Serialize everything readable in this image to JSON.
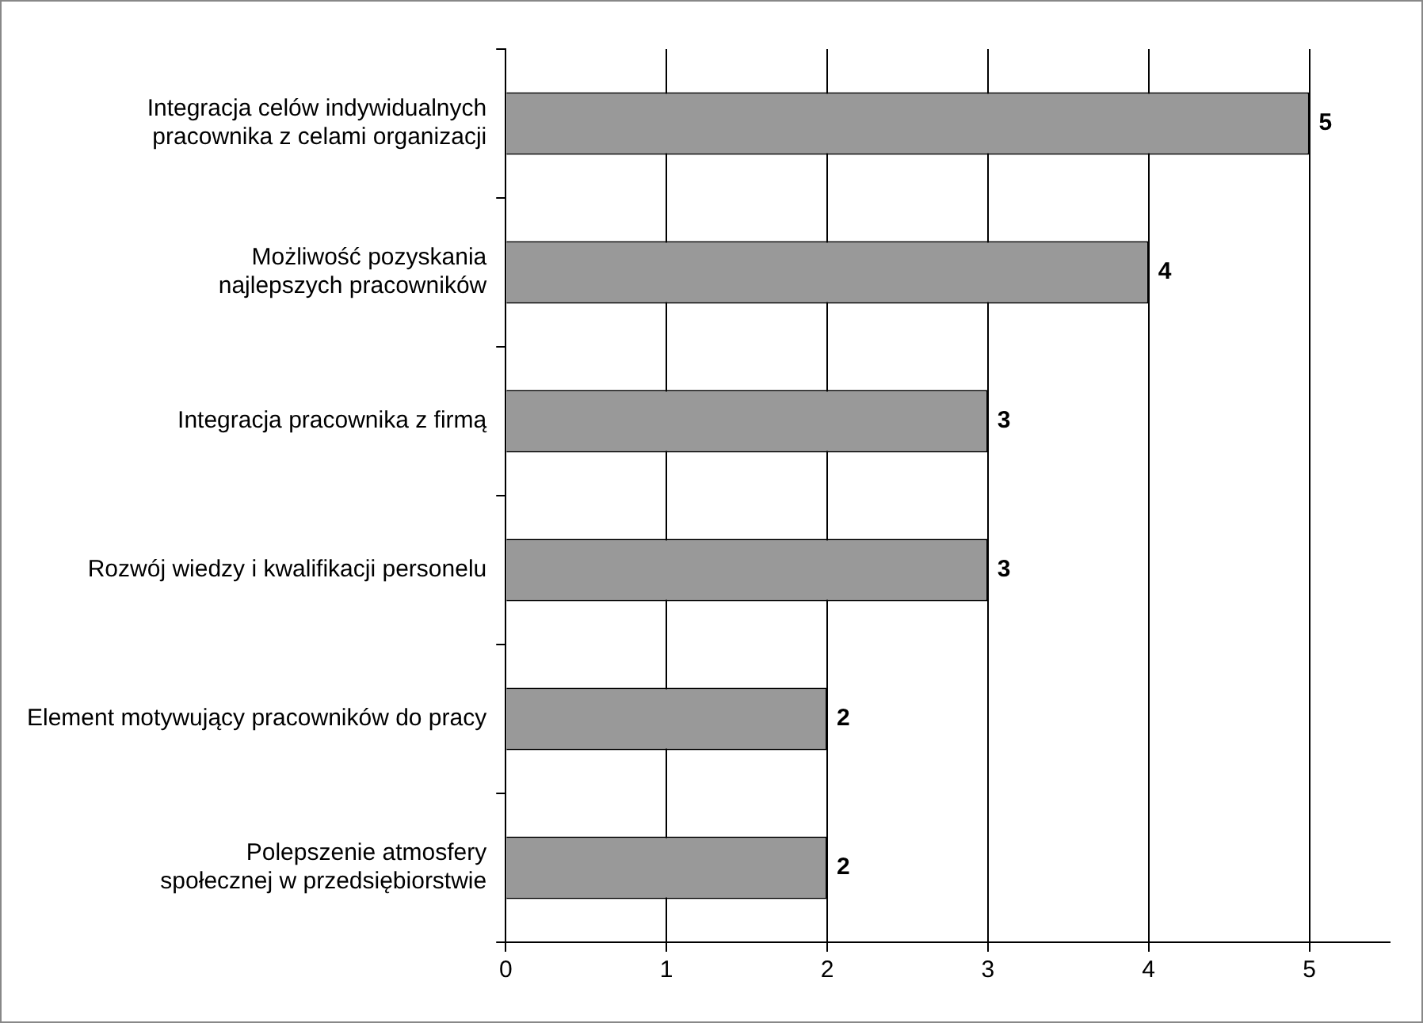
{
  "chart_data": {
    "type": "bar",
    "orientation": "horizontal",
    "categories": [
      "Integracja celów indywidualnych pracownika z celami organizacji",
      "Możliwość pozyskania najlepszych pracowników",
      "Integracja pracownika z firmą",
      "Rozwój wiedzy i kwalifikacji personelu",
      "Element motywujący pracowników do pracy",
      "Polepszenie atmosfery społecznej w przedsiębiorstwie"
    ],
    "values": [
      5,
      4,
      3,
      3,
      2,
      2
    ],
    "color": "#999999",
    "xlim": [
      0,
      5.5
    ],
    "xticks": [
      0,
      1,
      2,
      3,
      4,
      5
    ],
    "grid": "x",
    "legend": false,
    "data_labels": true
  }
}
